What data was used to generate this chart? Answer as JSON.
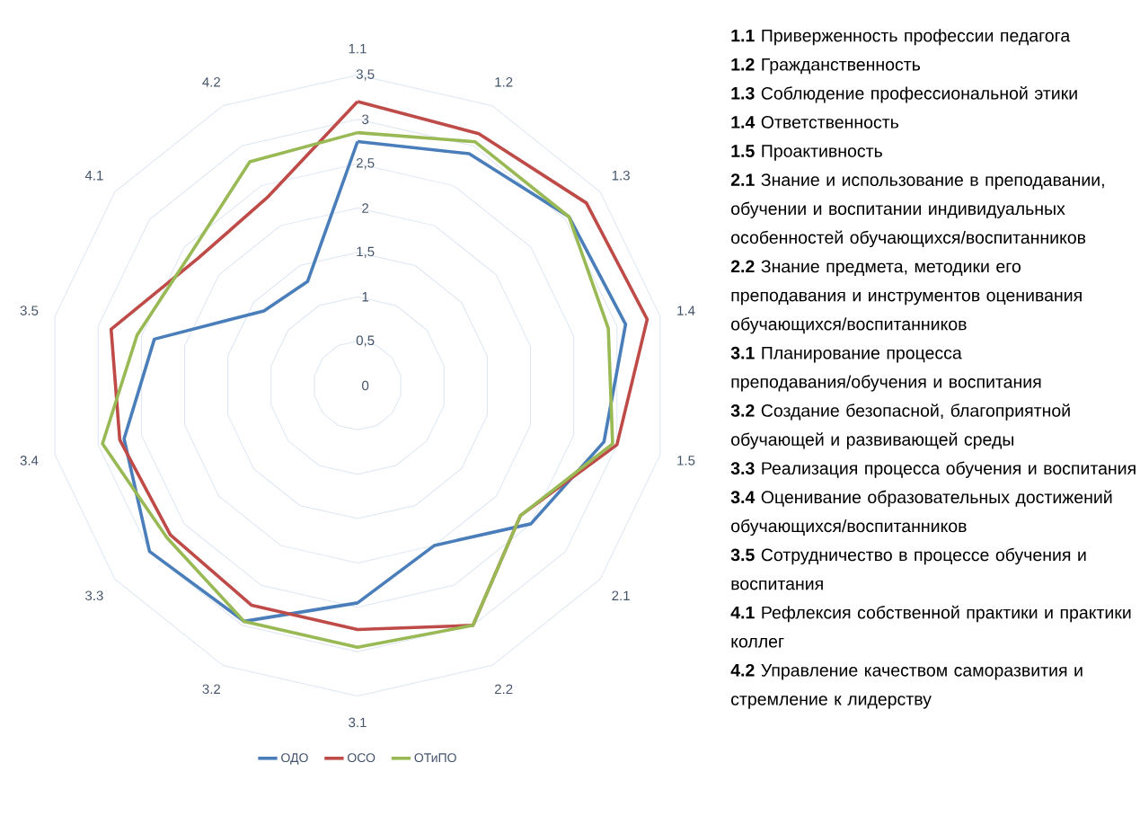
{
  "chart_data": {
    "type": "radar",
    "categories": [
      "1.1",
      "1.2",
      "1.3",
      "1.4",
      "1.5",
      "2.1",
      "2.2",
      "3.1",
      "3.2",
      "3.3",
      "3.4",
      "3.5",
      "4.1",
      "4.2"
    ],
    "series": [
      {
        "name": "ОДО",
        "color": "#4a7ebb",
        "values": [
          2.75,
          2.9,
          3.05,
          3.1,
          2.85,
          2.5,
          2.0,
          2.45,
          2.95,
          3.0,
          2.7,
          2.35,
          1.35,
          1.3
        ]
      },
      {
        "name": "ОСО",
        "color": "#be4b48",
        "values": [
          3.2,
          3.15,
          3.3,
          3.35,
          3.0,
          2.35,
          3.0,
          2.75,
          2.75,
          2.7,
          2.75,
          2.85,
          2.3,
          2.35
        ]
      },
      {
        "name": "ОТиПО",
        "color": "#98b954",
        "values": [
          2.85,
          3.05,
          3.05,
          2.9,
          2.95,
          2.35,
          3.0,
          2.95,
          2.95,
          2.75,
          2.95,
          2.55,
          2.4,
          2.8
        ]
      }
    ],
    "ylim": [
      0,
      3.5
    ],
    "yticks": [
      {
        "value": 0,
        "label": "0"
      },
      {
        "value": 0.5,
        "label": "0,5"
      },
      {
        "value": 1,
        "label": "1"
      },
      {
        "value": 1.5,
        "label": "1,5"
      },
      {
        "value": 2,
        "label": "2"
      },
      {
        "value": 2.5,
        "label": "2,5"
      },
      {
        "value": 3,
        "label": "3"
      },
      {
        "value": 3.5,
        "label": "3,5"
      }
    ],
    "grid": true,
    "legend": "bottom",
    "annotations": [
      "**1.1** Приверженность профессии педагога",
      "**1.2** Гражданственность",
      "**1.3** Соблюдение профессиональной этики",
      "**1.4** Ответственность",
      "**1.5** Проактивность",
      "**2.1** Знание и использование в преподавании, обучении и воспитании индивидуальных особенностей обучающихся/воспитанников",
      "**2.2** Знание предмета, методики его преподавания и инструментов оценивания обучающихся/воспитанников",
      "**3.1** Планирование процесса преподавания/обучения и воспитания",
      "**3.2** Создание безопасной, благоприятной обучающей и развивающей среды",
      "**3.3** Реализация процесса обучения и воспитания",
      "**3.4** Оценивание образовательных достижений обучающихся/воспитанников",
      "**3.5** Сотрудничество в процессе обучения и воспитания",
      "**4.1** Рефлексия собственной практики и практики коллег",
      "**4.2** Управление качеством саморазвития и стремление к лидерству"
    ]
  }
}
